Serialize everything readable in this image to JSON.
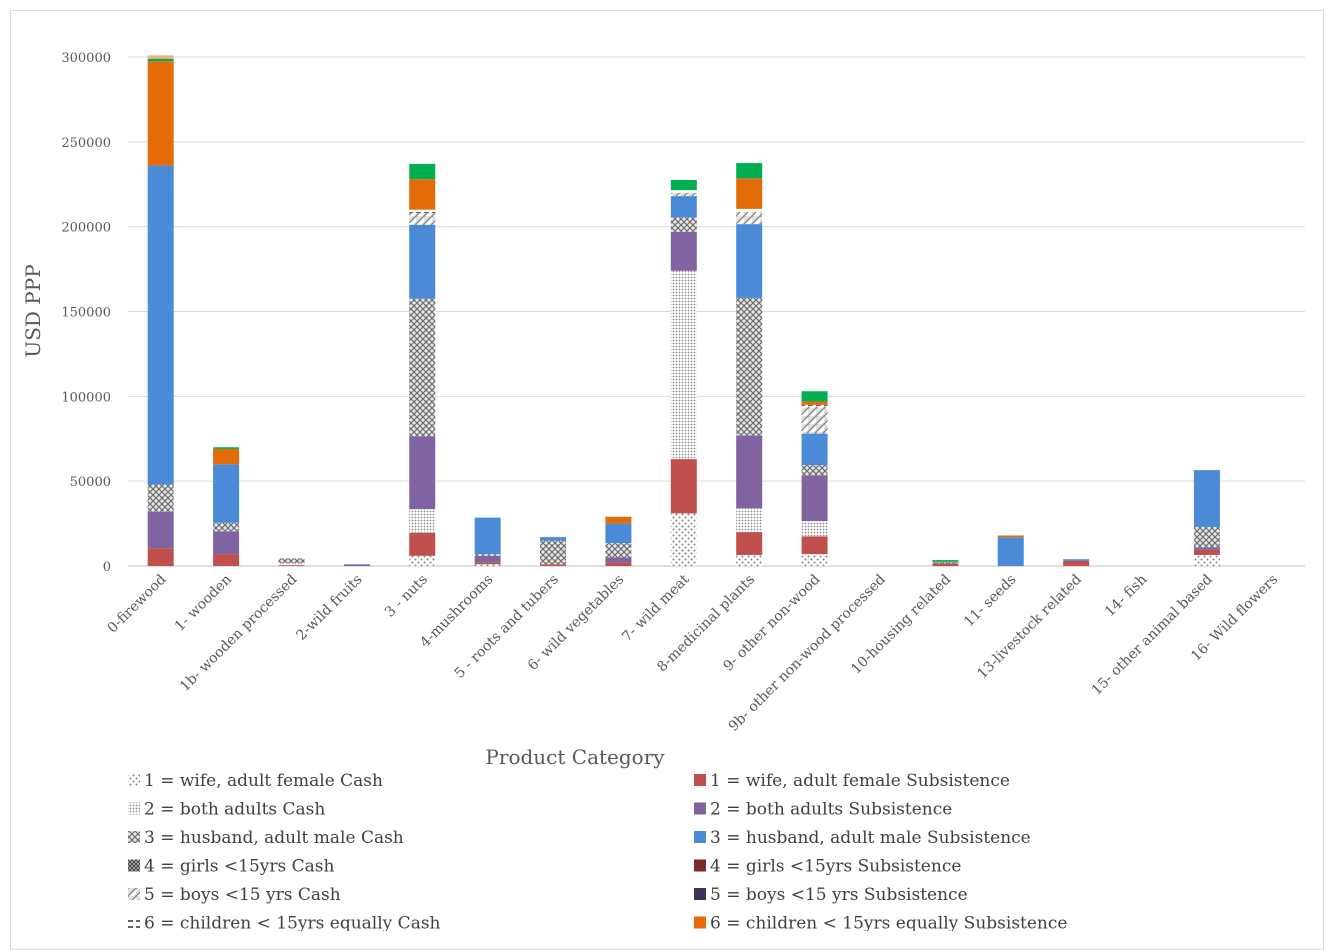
{
  "chart_data": {
    "type": "bar",
    "stacked": true,
    "title": "",
    "xlabel": "Product Category",
    "ylabel": "USD PPP",
    "ylim": [
      0,
      300000
    ],
    "yticks": [
      0,
      50000,
      100000,
      150000,
      200000,
      250000,
      300000
    ],
    "grid": true,
    "legend_position": "bottom",
    "categories": [
      "0-firewood",
      "1- wooden",
      "1b- wooden processed",
      "2-wild fruits",
      "3 - nuts",
      "4-mushrooms",
      "5 - roots and tubers",
      "6- wild vegetables",
      "7- wild meat",
      "8-medicinal plants",
      "9- other non-wood",
      "9b- other non-wood processed",
      "10-housing related",
      "11- seeds",
      "13-livestock related",
      "14- fish",
      "15- other animal based",
      "16- Wild flowers"
    ],
    "series": [
      {
        "name": "1 = wife, adult female Cash",
        "color": "#ffffff",
        "pattern": "dots-sparse",
        "values": [
          0,
          0,
          0,
          0,
          6000,
          1000,
          0,
          0,
          31000,
          6500,
          7000,
          0,
          0,
          0,
          0,
          0,
          6500,
          0
        ]
      },
      {
        "name": "1 = wife, adult female Subsistence",
        "color": "#c0504d",
        "values": [
          10500,
          7000,
          500,
          0,
          13500,
          1000,
          1000,
          2000,
          32000,
          13500,
          10500,
          0,
          1500,
          0,
          3000,
          0,
          3000,
          0
        ]
      },
      {
        "name": "2 = both adults Cash",
        "color": "#a6a6a6",
        "pattern": "dots-dense",
        "values": [
          0,
          0,
          1000,
          0,
          14000,
          0,
          0,
          0,
          111000,
          14000,
          9000,
          0,
          0,
          0,
          0,
          0,
          0,
          0
        ]
      },
      {
        "name": "2 = both adults Subsistence",
        "color": "#8064a2",
        "values": [
          21500,
          13500,
          0,
          1000,
          43000,
          4000,
          0,
          3000,
          23000,
          43000,
          27000,
          0,
          0,
          0,
          0,
          0,
          1500,
          0
        ]
      },
      {
        "name": "3 = husband, adult male Cash",
        "color": "#7f7f7f",
        "pattern": "cross",
        "values": [
          16000,
          5000,
          3000,
          0,
          81000,
          1000,
          14000,
          8500,
          8500,
          81000,
          6000,
          0,
          1000,
          0,
          0,
          0,
          12000,
          0
        ]
      },
      {
        "name": "3 = husband, adult male Subsistence",
        "color": "#4a8ad6",
        "values": [
          188000,
          34500,
          0,
          0,
          43500,
          21500,
          2000,
          11500,
          12500,
          43500,
          18500,
          0,
          0,
          17000,
          1000,
          0,
          33500,
          0
        ]
      },
      {
        "name": "4 = girls <15yrs Cash",
        "color": "#595959",
        "pattern": "cross-dense",
        "values": [
          0,
          0,
          0,
          0,
          0,
          0,
          0,
          0,
          0,
          0,
          0,
          0,
          0,
          0,
          0,
          0,
          0,
          0
        ]
      },
      {
        "name": "4 = girls <15yrs Subsistence",
        "color": "#7b2c2c",
        "values": [
          0,
          0,
          0,
          0,
          0,
          0,
          0,
          0,
          0,
          0,
          0,
          0,
          0,
          0,
          0,
          0,
          0,
          0
        ]
      },
      {
        "name": "5 = boys <15 yrs Cash",
        "color": "#a6a6a6",
        "pattern": "diagonal",
        "values": [
          0,
          0,
          0,
          0,
          7000,
          0,
          0,
          0,
          2000,
          7000,
          16000,
          0,
          0,
          0,
          0,
          0,
          0,
          0
        ]
      },
      {
        "name": "5 = boys <15 yrs Subsistence",
        "color": "#3f3157",
        "values": [
          0,
          0,
          0,
          0,
          0,
          0,
          0,
          0,
          0,
          0,
          0,
          0,
          0,
          0,
          0,
          0,
          0,
          0
        ]
      },
      {
        "name": "6 = children < 15yrs equally Cash",
        "color": "#404040",
        "pattern": "dash",
        "values": [
          0,
          0,
          0,
          0,
          2000,
          0,
          0,
          0,
          1500,
          2000,
          1000,
          0,
          0,
          0,
          0,
          0,
          0,
          0
        ]
      },
      {
        "name": "6 = children < 15yrs equally Subsistence",
        "color": "#e36c09",
        "values": [
          61500,
          9000,
          0,
          0,
          18000,
          0,
          0,
          4000,
          0,
          18000,
          2000,
          0,
          0,
          1000,
          0,
          0,
          0,
          0
        ]
      },
      {
        "name": "",
        "color": "#00b050",
        "values": [
          1500,
          1000,
          0,
          0,
          9000,
          0,
          0,
          0,
          6000,
          9000,
          6000,
          0,
          1000,
          0,
          0,
          0,
          0,
          0
        ]
      },
      {
        "name": "",
        "color": "#f4b183",
        "values": [
          2000,
          0,
          0,
          0,
          0,
          0,
          0,
          0,
          0,
          0,
          0,
          0,
          0,
          0,
          0,
          0,
          0,
          0
        ]
      }
    ]
  }
}
